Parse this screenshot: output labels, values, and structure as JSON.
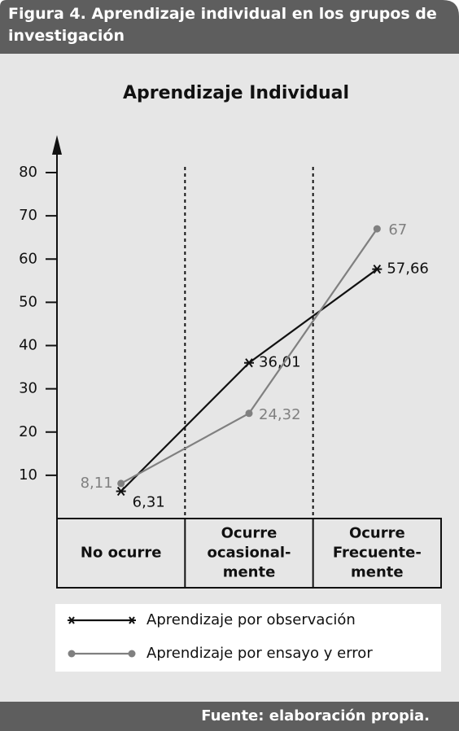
{
  "caption": "Figura 4. Aprendizaje individual en los grupos de investigación",
  "source": "Fuente: elaboración propia.",
  "chart_data": {
    "type": "line",
    "title": "Aprendizaje Individual",
    "categories": [
      "No ocurre",
      "Ocurre\nocasional-\nmente",
      "Ocurre\nFrecuente-\nmente"
    ],
    "series": [
      {
        "name": "Aprendizaje por observación",
        "color": "#111111",
        "marker": "star",
        "values": [
          6.31,
          36.01,
          57.66
        ],
        "value_labels": [
          "6,31",
          "36,01",
          "57,66"
        ]
      },
      {
        "name": "Aprendizaje por ensayo y error",
        "color": "#808080",
        "marker": "circle",
        "values": [
          8.11,
          24.32,
          67
        ],
        "value_labels": [
          "8,11",
          "24,32",
          "67"
        ]
      }
    ],
    "ylim": [
      0,
      80
    ],
    "yticks": [
      10,
      20,
      30,
      40,
      50,
      60,
      70,
      80
    ],
    "grid": false
  }
}
